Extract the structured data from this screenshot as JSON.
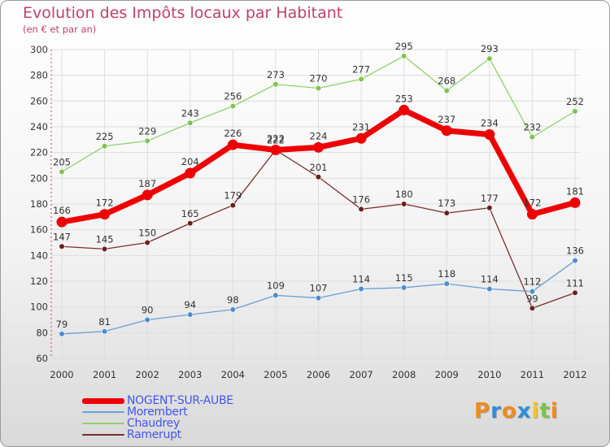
{
  "header": {
    "title": "Evolution des Impôts locaux par Habitant",
    "subtitle": "(en € et par an)"
  },
  "colors": {
    "title": "#c0406a",
    "grid": "#dddddd",
    "axis_text": "#333333",
    "highlight_label": "#4455ee"
  },
  "chart_data": {
    "type": "line",
    "title": "Evolution des Impôts locaux par Habitant",
    "subtitle": "(en € et par an)",
    "x": [
      "2000",
      "2001",
      "2002",
      "2003",
      "2004",
      "2005",
      "2006",
      "2007",
      "2008",
      "2009",
      "2010",
      "2011",
      "2012"
    ],
    "ylim": [
      60,
      300
    ],
    "yticks": [
      60,
      80,
      100,
      120,
      140,
      160,
      180,
      200,
      220,
      240,
      260,
      280,
      300
    ],
    "grid": true,
    "legend_position": "bottom-left",
    "series": [
      {
        "name": "Chaudrey",
        "color": "#8fd16b",
        "marker": "#7cc452",
        "width": 1.3,
        "marker_r": 3.3,
        "values": [
          205,
          225,
          229,
          243,
          256,
          273,
          270,
          277,
          295,
          268,
          293,
          232,
          252
        ]
      },
      {
        "name": "Ramerupt",
        "color": "#7a2e2e",
        "marker": "#6b1f1f",
        "width": 1.3,
        "marker_r": 3.3,
        "values": [
          147,
          145,
          150,
          165,
          179,
          222,
          201,
          176,
          180,
          173,
          177,
          99,
          111
        ]
      },
      {
        "name": "Morembert",
        "color": "#6a9fd4",
        "marker": "#4b8ccf",
        "width": 1.3,
        "marker_r": 3.3,
        "values": [
          79,
          81,
          90,
          94,
          98,
          109,
          107,
          114,
          115,
          118,
          114,
          112,
          136
        ]
      },
      {
        "name": "NOGENT-SUR-AUBE",
        "color": "#ee0000",
        "marker": "#ee0000",
        "width": 7,
        "marker_r": 6.5,
        "values": [
          166,
          172,
          187,
          204,
          226,
          222,
          224,
          231,
          253,
          237,
          234,
          172,
          181
        ]
      }
    ]
  },
  "legend": [
    {
      "name": "NOGENT-SUR-AUBE",
      "color": "#ee0000",
      "text_color": "#4455ee",
      "thick": 7
    },
    {
      "name": "Morembert",
      "color": "#6a9fd4",
      "text_color": "#4455ee",
      "thick": 2
    },
    {
      "name": "Chaudrey",
      "color": "#8fd16b",
      "text_color": "#4455ee",
      "thick": 2
    },
    {
      "name": "Ramerupt",
      "color": "#7a2e2e",
      "text_color": "#4455ee",
      "thick": 2
    }
  ],
  "logo": {
    "text": "Proxiti",
    "letters": [
      {
        "ch": "P",
        "color": "#f08a1c"
      },
      {
        "ch": "r",
        "color": "#2f8fdc"
      },
      {
        "ch": "o",
        "color": "#f08a1c"
      },
      {
        "ch": "x",
        "color": "#2f8fdc"
      },
      {
        "ch": "i",
        "color": "#f5c518"
      },
      {
        "ch": "t",
        "color": "#7cc452"
      },
      {
        "ch": "i",
        "color": "#f08a1c"
      }
    ]
  }
}
